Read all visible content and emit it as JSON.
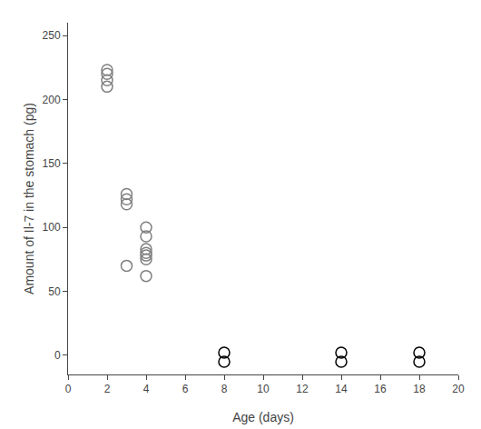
{
  "chart_data": {
    "type": "scatter",
    "xlabel": "Age (days)",
    "ylabel": "Amount of Il-7 in the stomach (pg)",
    "x": [
      2,
      2,
      2,
      2,
      3,
      3,
      3,
      3,
      4,
      4,
      4,
      4,
      4,
      4,
      4,
      8,
      8,
      14,
      14,
      18,
      18
    ],
    "values": [
      215,
      220,
      223,
      210,
      118,
      122,
      126,
      70,
      93,
      100,
      75,
      78,
      80,
      83,
      62,
      2,
      -5,
      2,
      -5,
      2,
      -5
    ],
    "colors": [
      "#808080",
      "#808080",
      "#808080",
      "#808080",
      "#808080",
      "#808080",
      "#808080",
      "#808080",
      "#808080",
      "#808080",
      "#808080",
      "#808080",
      "#808080",
      "#808080",
      "#808080",
      "#000000",
      "#000000",
      "#000000",
      "#000000",
      "#000000",
      "#000000"
    ],
    "marker": "open circle",
    "xlim": [
      0,
      20
    ],
    "xticks": [
      0,
      2,
      4,
      6,
      8,
      10,
      12,
      14,
      16,
      18,
      20
    ],
    "ylim": [
      -15,
      260
    ],
    "yticks": [
      0,
      50,
      100,
      150,
      200,
      250
    ],
    "grid": false
  }
}
